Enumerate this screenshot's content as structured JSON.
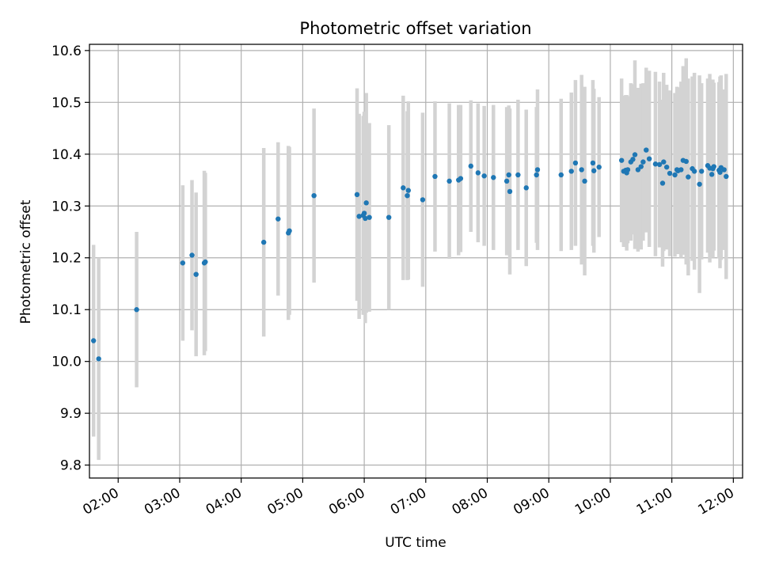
{
  "chart_data": {
    "type": "scatter",
    "title": "Photometric offset variation",
    "xlabel": "UTC time",
    "ylabel": "Photometric offset",
    "xlim": [
      "01:32",
      "12:09"
    ],
    "ylim": [
      9.775,
      10.612
    ],
    "x_ticks": [
      "02:00",
      "03:00",
      "04:00",
      "05:00",
      "06:00",
      "07:00",
      "08:00",
      "09:00",
      "10:00",
      "11:00",
      "12:00"
    ],
    "y_ticks": [
      9.8,
      9.9,
      10.0,
      10.1,
      10.2,
      10.3,
      10.4,
      10.5,
      10.6
    ],
    "y_tick_labels": [
      "9.8",
      "9.9",
      "10.0",
      "10.1",
      "10.2",
      "10.3",
      "10.4",
      "10.5",
      "10.6"
    ],
    "grid": true,
    "colors": {
      "points": "#1f77b4",
      "errorbars": "#d3d3d3",
      "grid": "#b0b0b0"
    },
    "series": [
      {
        "x": [
          "01:36",
          "01:41",
          "02:18",
          "03:03",
          "03:12",
          "03:16",
          "03:24",
          "03:25",
          "04:22",
          "04:36",
          "04:46",
          "04:47",
          "05:11",
          "05:53",
          "05:55",
          "05:59",
          "06:00",
          "06:01",
          "06:02",
          "06:05",
          "06:24",
          "06:38",
          "06:42",
          "06:43",
          "06:57",
          "07:09",
          "07:23",
          "07:32",
          "07:34",
          "07:44",
          "07:51",
          "07:57",
          "08:06",
          "08:19",
          "08:21",
          "08:22",
          "08:30",
          "08:38",
          "08:48",
          "08:49",
          "09:12",
          "09:22",
          "09:26",
          "09:32",
          "09:35",
          "09:43",
          "09:44",
          "09:49",
          "10:11",
          "10:13",
          "10:15",
          "10:16",
          "10:17",
          "10:20",
          "10:22",
          "10:24",
          "10:27",
          "10:30",
          "10:32",
          "10:35",
          "10:38",
          "10:44",
          "10:48",
          "10:51",
          "10:52",
          "10:55",
          "10:58",
          "11:03",
          "11:05",
          "11:06",
          "11:09",
          "11:11",
          "11:14",
          "11:16",
          "11:20",
          "11:22",
          "11:27",
          "11:29",
          "11:35",
          "11:37",
          "11:39",
          "11:40",
          "11:41",
          "11:46",
          "11:47",
          "11:48",
          "11:51",
          "11:53"
        ],
        "y": [
          10.04,
          10.005,
          10.1,
          10.19,
          10.205,
          10.168,
          10.19,
          10.192,
          10.23,
          10.275,
          10.248,
          10.252,
          10.32,
          10.322,
          10.28,
          10.282,
          10.286,
          10.276,
          10.306,
          10.278,
          10.278,
          10.335,
          10.32,
          10.33,
          10.312,
          10.357,
          10.348,
          10.35,
          10.353,
          10.377,
          10.364,
          10.358,
          10.355,
          10.348,
          10.36,
          10.328,
          10.36,
          10.335,
          10.36,
          10.37,
          10.36,
          10.367,
          10.383,
          10.37,
          10.348,
          10.383,
          10.368,
          10.375,
          10.388,
          10.367,
          10.369,
          10.364,
          10.37,
          10.385,
          10.39,
          10.399,
          10.37,
          10.376,
          10.385,
          10.408,
          10.391,
          10.381,
          10.38,
          10.344,
          10.385,
          10.375,
          10.363,
          10.36,
          10.37,
          10.368,
          10.37,
          10.388,
          10.386,
          10.356,
          10.372,
          10.367,
          10.342,
          10.367,
          10.378,
          10.373,
          10.361,
          10.372,
          10.376,
          10.369,
          10.365,
          10.374,
          10.37,
          10.357
        ],
        "err": [
          0.185,
          0.195,
          0.15,
          0.15,
          0.145,
          0.158,
          0.178,
          0.172,
          0.182,
          0.148,
          0.168,
          0.162,
          0.168,
          0.205,
          0.198,
          0.192,
          0.196,
          0.202,
          0.212,
          0.182,
          0.178,
          0.178,
          0.163,
          0.172,
          0.168,
          0.145,
          0.15,
          0.145,
          0.142,
          0.127,
          0.134,
          0.135,
          0.14,
          0.143,
          0.134,
          0.16,
          0.145,
          0.151,
          0.131,
          0.155,
          0.147,
          0.152,
          0.16,
          0.183,
          0.182,
          0.16,
          0.158,
          0.135,
          0.158,
          0.146,
          0.145,
          0.15,
          0.142,
          0.152,
          0.145,
          0.182,
          0.158,
          0.16,
          0.152,
          0.159,
          0.17,
          0.178,
          0.16,
          0.161,
          0.172,
          0.159,
          0.16,
          0.158,
          0.16,
          0.161,
          0.17,
          0.182,
          0.199,
          0.19,
          0.178,
          0.19,
          0.21,
          0.17,
          0.168,
          0.182,
          0.16,
          0.172,
          0.162,
          0.17,
          0.185,
          0.178,
          0.155,
          0.198
        ]
      }
    ]
  }
}
